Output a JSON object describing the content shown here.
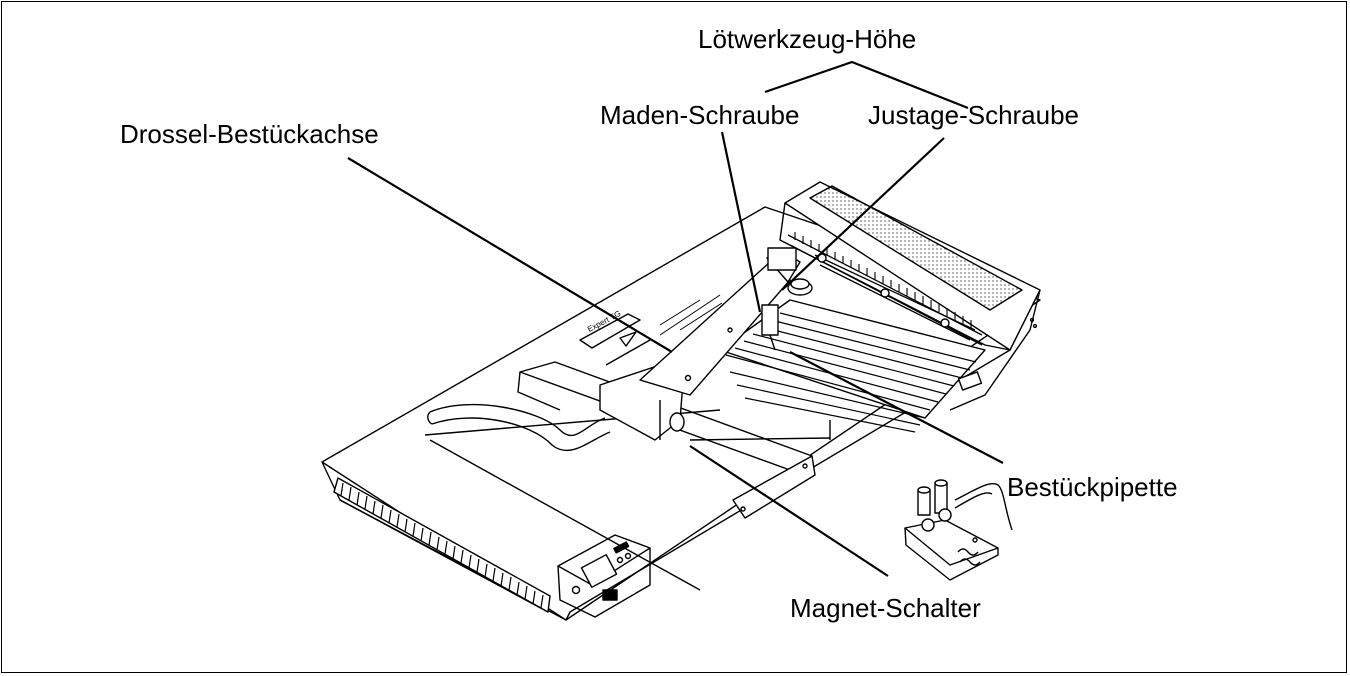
{
  "labels": {
    "loetwerkzeug_hoehe": "Lötwerkzeug-Höhe",
    "maden_schraube": "Maden-Schraube",
    "justage_schraube": "Justage-Schraube",
    "drossel_bestueckachse": "Drossel-Bestückachse",
    "bestueckpipette": "Bestückpipette",
    "magnet_schalter": "Magnet-Schalter"
  },
  "device_text": {
    "sticker": "Expert TG"
  },
  "colors": {
    "line": "#000000",
    "background": "#ffffff"
  }
}
